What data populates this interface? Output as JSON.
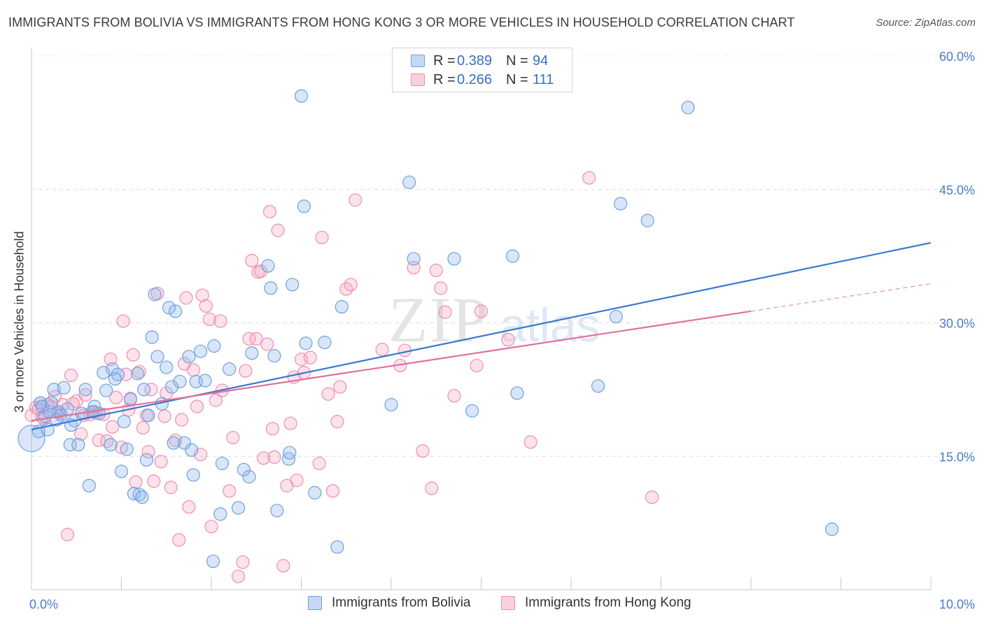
{
  "title": "IMMIGRANTS FROM BOLIVIA VS IMMIGRANTS FROM HONG KONG 3 OR MORE VEHICLES IN HOUSEHOLD CORRELATION CHART",
  "source": "Source: ZipAtlas.com",
  "watermark": {
    "zip": "ZIP",
    "atlas": "atlas"
  },
  "legend": {
    "rows": [
      {
        "r_label": "R =",
        "r_value": "0.389",
        "n_label": "N =",
        "n_value": "94",
        "color": "#6fa0e0",
        "fill": "#c5d8f3"
      },
      {
        "r_label": "R =",
        "r_value": "0.266",
        "n_label": "N =",
        "n_value": "111",
        "color": "#ee8fb0",
        "fill": "#f8d0de"
      }
    ]
  },
  "bottom_legend": {
    "bolivia": "Immigrants from Bolivia",
    "hongkong": "Immigrants from Hong Kong"
  },
  "chart_data": {
    "type": "scatter",
    "title": "IMMIGRANTS FROM BOLIVIA VS IMMIGRANTS FROM HONG KONG 3 OR MORE VEHICLES IN HOUSEHOLD CORRELATION CHART",
    "xlabel": "",
    "ylabel": "3 or more Vehicles in Household",
    "xlim": [
      0,
      10
    ],
    "ylim": [
      0,
      60
    ],
    "x_tick_labels": {
      "left": "0.0%",
      "right": "10.0%"
    },
    "y_ticks": [
      {
        "value": 15,
        "label": "15.0%"
      },
      {
        "value": 30,
        "label": "30.0%"
      },
      {
        "value": 45,
        "label": "45.0%"
      },
      {
        "value": 60,
        "label": "60.0%"
      }
    ],
    "grid": "horizontal dashed",
    "series": [
      {
        "name": "Immigrants from Bolivia",
        "color": "#6fa0e0",
        "fill": "rgba(143,182,236,0.35)",
        "trend": {
          "x": [
            0,
            10
          ],
          "y": [
            18.0,
            39.0
          ],
          "color": "#3a78d0"
        },
        "points": [
          [
            0.0,
            17.0
          ],
          [
            0.1,
            21.0
          ],
          [
            0.12,
            20.6
          ],
          [
            0.15,
            19.5
          ],
          [
            0.18,
            18.0
          ],
          [
            0.2,
            20.0
          ],
          [
            0.25,
            22.5
          ],
          [
            0.3,
            20.0
          ],
          [
            0.33,
            19.6
          ],
          [
            0.36,
            22.7
          ],
          [
            0.4,
            20.3
          ],
          [
            0.43,
            16.3
          ],
          [
            0.48,
            19.0
          ],
          [
            0.52,
            16.3
          ],
          [
            0.56,
            19.8
          ],
          [
            0.6,
            22.5
          ],
          [
            0.64,
            11.7
          ],
          [
            0.7,
            20.6
          ],
          [
            0.75,
            19.8
          ],
          [
            0.8,
            24.4
          ],
          [
            0.83,
            22.4
          ],
          [
            0.88,
            16.3
          ],
          [
            0.9,
            24.8
          ],
          [
            0.93,
            23.7
          ],
          [
            0.96,
            24.2
          ],
          [
            1.0,
            13.3
          ],
          [
            1.03,
            18.9
          ],
          [
            1.06,
            15.8
          ],
          [
            1.1,
            21.4
          ],
          [
            1.14,
            10.8
          ],
          [
            1.18,
            24.3
          ],
          [
            1.2,
            10.7
          ],
          [
            1.23,
            10.4
          ],
          [
            1.25,
            22.5
          ],
          [
            1.28,
            14.6
          ],
          [
            1.3,
            19.6
          ],
          [
            1.34,
            28.4
          ],
          [
            1.37,
            33.2
          ],
          [
            1.4,
            26.2
          ],
          [
            1.45,
            20.9
          ],
          [
            1.5,
            25.0
          ],
          [
            1.53,
            31.7
          ],
          [
            1.56,
            22.8
          ],
          [
            1.6,
            31.3
          ],
          [
            1.65,
            23.4
          ],
          [
            1.7,
            16.5
          ],
          [
            1.75,
            26.2
          ],
          [
            1.78,
            15.7
          ],
          [
            1.8,
            12.9
          ],
          [
            1.83,
            23.4
          ],
          [
            1.88,
            26.8
          ],
          [
            1.93,
            23.5
          ],
          [
            2.03,
            27.4
          ],
          [
            2.1,
            8.5
          ],
          [
            2.12,
            14.2
          ],
          [
            2.2,
            24.8
          ],
          [
            2.3,
            9.2
          ],
          [
            2.36,
            13.5
          ],
          [
            2.42,
            12.7
          ],
          [
            2.45,
            26.6
          ],
          [
            2.63,
            36.4
          ],
          [
            2.66,
            33.9
          ],
          [
            2.7,
            26.3
          ],
          [
            2.73,
            8.9
          ],
          [
            2.86,
            14.7
          ],
          [
            2.87,
            15.4
          ],
          [
            2.9,
            34.3
          ],
          [
            3.0,
            55.5
          ],
          [
            3.03,
            43.1
          ],
          [
            3.05,
            27.7
          ],
          [
            3.15,
            10.9
          ],
          [
            3.26,
            27.8
          ],
          [
            3.4,
            4.8
          ],
          [
            3.45,
            31.8
          ],
          [
            4.0,
            20.8
          ],
          [
            4.2,
            45.8
          ],
          [
            4.25,
            37.2
          ],
          [
            4.7,
            37.2
          ],
          [
            4.9,
            20.1
          ],
          [
            5.35,
            37.5
          ],
          [
            5.4,
            22.1
          ],
          [
            6.3,
            22.9
          ],
          [
            6.5,
            30.7
          ],
          [
            6.55,
            43.4
          ],
          [
            6.85,
            41.5
          ],
          [
            7.3,
            54.2
          ],
          [
            8.9,
            6.8
          ],
          [
            2.02,
            3.2
          ],
          [
            0.28,
            19.1
          ],
          [
            0.08,
            17.8
          ],
          [
            0.22,
            21.0
          ],
          [
            0.44,
            18.5
          ],
          [
            0.68,
            20.0
          ],
          [
            1.58,
            16.5
          ]
        ]
      },
      {
        "name": "Immigrants from Hong Kong",
        "color": "#ee8fb0",
        "fill": "rgba(244,172,198,0.35)",
        "trend": {
          "x": [
            0,
            8.0
          ],
          "y": [
            19.0,
            31.3
          ],
          "color": "#e3709a",
          "dash_to": {
            "x": 10,
            "y": 34.4
          }
        },
        "points": [
          [
            0.0,
            19.6
          ],
          [
            0.05,
            20.5
          ],
          [
            0.08,
            20.3
          ],
          [
            0.1,
            21.0
          ],
          [
            0.14,
            19.2
          ],
          [
            0.18,
            20.8
          ],
          [
            0.22,
            20.6
          ],
          [
            0.26,
            21.7
          ],
          [
            0.3,
            20.0
          ],
          [
            0.35,
            20.8
          ],
          [
            0.4,
            6.2
          ],
          [
            0.44,
            24.1
          ],
          [
            0.5,
            21.2
          ],
          [
            0.55,
            17.5
          ],
          [
            0.58,
            19.6
          ],
          [
            0.6,
            21.9
          ],
          [
            0.65,
            19.7
          ],
          [
            0.7,
            20.0
          ],
          [
            0.75,
            16.8
          ],
          [
            0.8,
            19.7
          ],
          [
            0.84,
            16.7
          ],
          [
            0.88,
            25.9
          ],
          [
            0.9,
            18.3
          ],
          [
            0.94,
            21.6
          ],
          [
            1.0,
            16.0
          ],
          [
            1.02,
            30.2
          ],
          [
            1.05,
            24.2
          ],
          [
            1.1,
            21.5
          ],
          [
            1.13,
            26.4
          ],
          [
            1.16,
            12.1
          ],
          [
            1.2,
            24.5
          ],
          [
            1.24,
            18.2
          ],
          [
            1.28,
            19.6
          ],
          [
            1.3,
            15.5
          ],
          [
            1.33,
            22.5
          ],
          [
            1.36,
            12.2
          ],
          [
            1.4,
            33.3
          ],
          [
            1.44,
            14.4
          ],
          [
            1.48,
            19.5
          ],
          [
            1.5,
            22.1
          ],
          [
            1.55,
            11.5
          ],
          [
            1.6,
            16.8
          ],
          [
            1.64,
            5.6
          ],
          [
            1.67,
            19.1
          ],
          [
            1.7,
            25.4
          ],
          [
            1.72,
            32.8
          ],
          [
            1.75,
            9.3
          ],
          [
            1.8,
            24.7
          ],
          [
            1.84,
            20.6
          ],
          [
            1.88,
            15.2
          ],
          [
            1.9,
            33.1
          ],
          [
            1.94,
            31.9
          ],
          [
            1.98,
            30.4
          ],
          [
            2.0,
            7.1
          ],
          [
            2.05,
            21.3
          ],
          [
            2.1,
            30.2
          ],
          [
            2.12,
            22.4
          ],
          [
            2.2,
            11.1
          ],
          [
            2.24,
            17.1
          ],
          [
            2.3,
            1.5
          ],
          [
            2.35,
            3.1
          ],
          [
            2.38,
            24.6
          ],
          [
            2.42,
            28.2
          ],
          [
            2.45,
            37.0
          ],
          [
            2.5,
            28.2
          ],
          [
            2.52,
            35.7
          ],
          [
            2.55,
            35.8
          ],
          [
            2.58,
            14.8
          ],
          [
            2.62,
            27.6
          ],
          [
            2.65,
            42.5
          ],
          [
            2.68,
            18.1
          ],
          [
            2.74,
            40.4
          ],
          [
            2.8,
            2.7
          ],
          [
            2.84,
            11.7
          ],
          [
            2.88,
            18.7
          ],
          [
            2.92,
            23.9
          ],
          [
            2.95,
            12.3
          ],
          [
            3.0,
            25.9
          ],
          [
            3.03,
            24.4
          ],
          [
            3.1,
            26.1
          ],
          [
            3.2,
            14.2
          ],
          [
            3.23,
            39.6
          ],
          [
            3.3,
            22.0
          ],
          [
            3.35,
            11.1
          ],
          [
            3.4,
            18.9
          ],
          [
            3.43,
            22.8
          ],
          [
            3.5,
            33.8
          ],
          [
            3.55,
            34.3
          ],
          [
            3.6,
            43.8
          ],
          [
            3.9,
            27.0
          ],
          [
            4.1,
            25.2
          ],
          [
            4.15,
            26.9
          ],
          [
            4.25,
            36.2
          ],
          [
            4.35,
            15.6
          ],
          [
            4.45,
            11.4
          ],
          [
            4.5,
            35.9
          ],
          [
            4.55,
            33.9
          ],
          [
            4.6,
            31.2
          ],
          [
            4.7,
            21.8
          ],
          [
            4.95,
            25.2
          ],
          [
            5.0,
            31.3
          ],
          [
            5.3,
            28.1
          ],
          [
            5.55,
            16.6
          ],
          [
            6.2,
            46.3
          ],
          [
            6.9,
            10.4
          ],
          [
            1.08,
            20.2
          ],
          [
            0.32,
            19.8
          ],
          [
            0.12,
            19.4
          ],
          [
            0.46,
            20.9
          ],
          [
            0.72,
            19.9
          ],
          [
            2.7,
            14.9
          ]
        ]
      }
    ]
  }
}
